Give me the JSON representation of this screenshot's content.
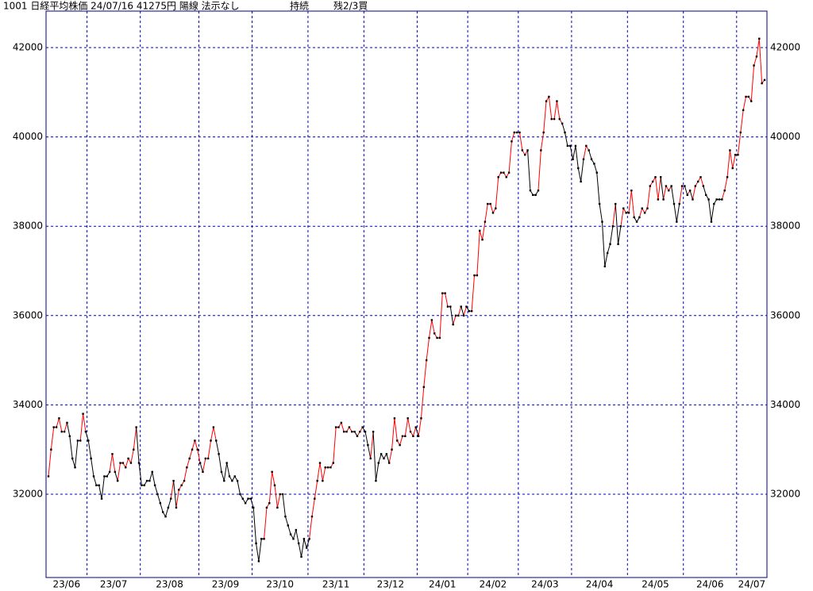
{
  "header": {
    "title": "1001 日経平均株価 24/07/16 41275円 陽線 法示なし",
    "status": "持続",
    "signal": "残2/3買"
  },
  "chart_data": {
    "type": "line",
    "categories": [
      "23/06",
      null,
      null,
      null,
      null,
      null,
      null,
      null,
      null,
      null,
      null,
      null,
      null,
      null,
      null,
      "23/07",
      null,
      null,
      null,
      null,
      null,
      null,
      null,
      null,
      null,
      null,
      null,
      null,
      null,
      null,
      null,
      null,
      null,
      null,
      null,
      "23/08",
      null,
      null,
      null,
      null,
      null,
      null,
      null,
      null,
      null,
      null,
      null,
      null,
      null,
      null,
      null,
      null,
      null,
      null,
      null,
      null,
      null,
      "23/09",
      null,
      null,
      null,
      null,
      null,
      null,
      null,
      null,
      null,
      null,
      null,
      null,
      null,
      null,
      null,
      null,
      null,
      null,
      null,
      "23/10",
      null,
      null,
      null,
      null,
      null,
      null,
      null,
      null,
      null,
      null,
      null,
      null,
      null,
      null,
      null,
      null,
      null,
      null,
      null,
      null,
      "23/11",
      null,
      null,
      null,
      null,
      null,
      null,
      null,
      null,
      null,
      null,
      null,
      null,
      null,
      null,
      null,
      null,
      null,
      null,
      null,
      null,
      "23/12",
      null,
      null,
      null,
      null,
      null,
      null,
      null,
      null,
      null,
      null,
      null,
      null,
      null,
      null,
      null,
      null,
      null,
      null,
      null,
      "24/01",
      null,
      null,
      null,
      null,
      null,
      null,
      null,
      null,
      null,
      null,
      null,
      null,
      null,
      null,
      null,
      null,
      null,
      null,
      "24/02",
      null,
      null,
      null,
      null,
      null,
      null,
      null,
      null,
      null,
      null,
      null,
      null,
      null,
      null,
      null,
      null,
      null,
      null,
      "24/03",
      null,
      null,
      null,
      null,
      null,
      null,
      null,
      null,
      null,
      null,
      null,
      null,
      null,
      null,
      null,
      null,
      null,
      null,
      null,
      "24/04",
      null,
      null,
      null,
      null,
      null,
      null,
      null,
      null,
      null,
      null,
      null,
      null,
      null,
      null,
      null,
      null,
      null,
      null,
      null,
      null,
      "24/05",
      null,
      null,
      null,
      null,
      null,
      null,
      null,
      null,
      null,
      null,
      null,
      null,
      null,
      null,
      null,
      null,
      null,
      null,
      null,
      null,
      "24/06",
      null,
      null,
      null,
      null,
      null,
      null,
      null,
      null,
      null,
      null,
      null,
      null,
      null,
      null,
      null,
      null,
      null,
      null,
      null,
      "24/07",
      null,
      null,
      null,
      null,
      null,
      null,
      null,
      null,
      null,
      null
    ],
    "values": [
      32400,
      33000,
      33500,
      33500,
      33700,
      33400,
      33400,
      33600,
      33300,
      32800,
      32600,
      33200,
      33200,
      33800,
      33400,
      33200,
      32800,
      32400,
      32200,
      32200,
      31900,
      32400,
      32400,
      32500,
      32900,
      32500,
      32300,
      32700,
      32700,
      32600,
      32800,
      32700,
      33000,
      33500,
      32700,
      32200,
      32200,
      32300,
      32300,
      32500,
      32200,
      32000,
      31800,
      31600,
      31500,
      31700,
      31900,
      32300,
      31700,
      32100,
      32200,
      32300,
      32600,
      32800,
      33000,
      33200,
      33000,
      32700,
      32500,
      32800,
      32800,
      33200,
      33500,
      33200,
      32900,
      32500,
      32300,
      32700,
      32400,
      32300,
      32400,
      32300,
      32000,
      31900,
      31800,
      31900,
      31900,
      31700,
      30900,
      30500,
      31000,
      31000,
      31700,
      31800,
      32500,
      32200,
      31700,
      32000,
      32000,
      31500,
      31300,
      31100,
      31000,
      31200,
      30900,
      30600,
      31000,
      30800,
      31000,
      31500,
      31900,
      32300,
      32700,
      32300,
      32600,
      32600,
      32600,
      32700,
      33500,
      33500,
      33600,
      33400,
      33400,
      33500,
      33400,
      33400,
      33300,
      33400,
      33500,
      33400,
      33100,
      32800,
      33400,
      32300,
      32700,
      32900,
      32800,
      32900,
      32700,
      33000,
      33700,
      33200,
      33100,
      33300,
      33300,
      33700,
      33400,
      33300,
      33500,
      33300,
      33700,
      34400,
      35000,
      35500,
      35900,
      35600,
      35500,
      35500,
      36500,
      36500,
      36200,
      36200,
      35800,
      36000,
      36000,
      36200,
      36000,
      36200,
      36100,
      36100,
      36900,
      36900,
      37900,
      37700,
      38100,
      38500,
      38500,
      38300,
      38400,
      39100,
      39200,
      39200,
      39100,
      39200,
      39900,
      40100,
      40100,
      40100,
      39700,
      39600,
      39700,
      38800,
      38700,
      38700,
      38800,
      39700,
      40100,
      40800,
      40900,
      40400,
      40400,
      40800,
      40400,
      40300,
      40100,
      39800,
      39800,
      39500,
      39800,
      39300,
      39000,
      39500,
      39800,
      39700,
      39500,
      39400,
      39200,
      38500,
      38100,
      37100,
      37400,
      37600,
      38000,
      38500,
      37600,
      38000,
      38400,
      38300,
      38300,
      38800,
      38200,
      38100,
      38200,
      38400,
      38300,
      38400,
      38900,
      39000,
      39100,
      38600,
      39100,
      38600,
      38900,
      38800,
      38900,
      38500,
      38100,
      38500,
      38900,
      38900,
      38700,
      38800,
      38600,
      38900,
      39000,
      39100,
      38900,
      38700,
      38600,
      38100,
      38500,
      38600,
      38600,
      38600,
      38800,
      39100,
      39700,
      39300,
      39600,
      39600,
      40100,
      40600,
      40900,
      40900,
      40800,
      41600,
      41800,
      42200,
      41200,
      41275
    ],
    "color": "#000000",
    "up_color": "#ff0000",
    "trend_window": 10,
    "ylim": [
      30135,
      42817
    ],
    "yticks": [
      32000,
      34000,
      36000,
      38000,
      40000,
      42000
    ],
    "grid": true,
    "grid_color": "#0000c0",
    "frame_color": "#000080"
  }
}
